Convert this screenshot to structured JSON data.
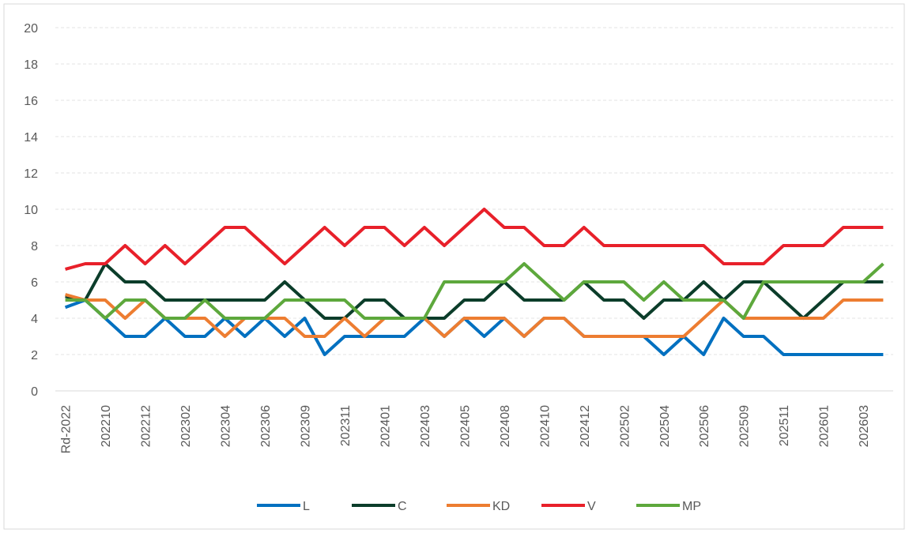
{
  "chart_data": {
    "type": "line",
    "categories": [
      "Rd-2022",
      null,
      "202210",
      null,
      "202212",
      null,
      "202302",
      null,
      "202304",
      null,
      "202306",
      null,
      "202309",
      null,
      "202311",
      null,
      "202401",
      null,
      "202403",
      null,
      "202405",
      null,
      "202408",
      null,
      "202410",
      null,
      "202412",
      null,
      "202502",
      null,
      "202504",
      null,
      "202506",
      null,
      "202509",
      null,
      "202511",
      null,
      "202601",
      null,
      "202603",
      null
    ],
    "ylim": [
      0,
      20
    ],
    "yticks": [
      0,
      2,
      4,
      6,
      8,
      10,
      12,
      14,
      16,
      18,
      20
    ],
    "grid": true,
    "legend": "bottom",
    "series": [
      {
        "name": "L",
        "color": "#0070c0",
        "values": [
          4.6,
          5,
          4,
          3,
          3,
          4,
          3,
          3,
          4,
          3,
          4,
          3,
          4,
          2,
          3,
          3,
          3,
          3,
          4,
          3,
          4,
          3,
          4,
          3,
          4,
          4,
          3,
          3,
          3,
          3,
          2,
          3,
          2,
          4,
          3,
          3,
          2,
          2,
          2,
          2,
          2,
          2
        ]
      },
      {
        "name": "C",
        "color": "#0b3d2a",
        "values": [
          5.2,
          5,
          7,
          6,
          6,
          5,
          5,
          5,
          5,
          5,
          5,
          6,
          5,
          4,
          4,
          5,
          5,
          4,
          4,
          4,
          5,
          5,
          6,
          5,
          5,
          5,
          6,
          5,
          5,
          4,
          5,
          5,
          6,
          5,
          6,
          6,
          5,
          4,
          5,
          6,
          6,
          6
        ]
      },
      {
        "name": "KD",
        "color": "#ed7d31",
        "values": [
          5.3,
          5,
          5,
          4,
          5,
          4,
          4,
          4,
          3,
          4,
          4,
          4,
          3,
          3,
          4,
          3,
          4,
          4,
          4,
          3,
          4,
          4,
          4,
          3,
          4,
          4,
          3,
          3,
          3,
          3,
          3,
          3,
          4,
          5,
          4,
          4,
          4,
          4,
          4,
          5,
          5,
          5
        ]
      },
      {
        "name": "V",
        "color": "#e8202a",
        "values": [
          6.7,
          7,
          7,
          8,
          7,
          8,
          7,
          8,
          9,
          9,
          8,
          7,
          8,
          9,
          8,
          9,
          9,
          8,
          9,
          8,
          9,
          10,
          9,
          9,
          8,
          8,
          9,
          8,
          8,
          8,
          8,
          8,
          8,
          7,
          7,
          7,
          8,
          8,
          8,
          9,
          9,
          9
        ]
      },
      {
        "name": "MP",
        "color": "#5da83c",
        "values": [
          5,
          5,
          4,
          5,
          5,
          4,
          4,
          5,
          4,
          4,
          4,
          5,
          5,
          5,
          5,
          4,
          4,
          4,
          4,
          6,
          6,
          6,
          6,
          7,
          6,
          5,
          6,
          6,
          6,
          5,
          6,
          5,
          5,
          5,
          4,
          6,
          6,
          6,
          6,
          6,
          6,
          7
        ]
      }
    ]
  }
}
